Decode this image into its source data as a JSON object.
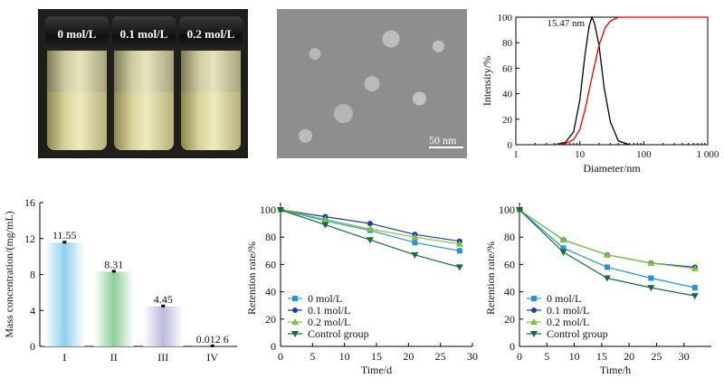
{
  "photo": {
    "vial_labels": [
      "0 mol/L",
      "0.1 mol/L",
      "0.2 mol/L"
    ]
  },
  "tem": {
    "scale_label": "50 nm"
  },
  "chart_data": [
    {
      "type": "line",
      "panel": "dls",
      "xlabel": "Diameter/nm",
      "ylabel": "Intensity/%",
      "xscale": "log",
      "xlim": [
        1,
        1000
      ],
      "ylim": [
        0,
        100
      ],
      "xticks": [
        "1",
        "10",
        "100",
        "1 000"
      ],
      "yticks": [
        0,
        20,
        40,
        60,
        80,
        100
      ],
      "annotation": "15.47 nm",
      "series": [
        {
          "color": "#000000",
          "x": [
            4,
            6,
            8,
            10,
            12,
            14,
            15.47,
            17,
            20,
            24,
            30,
            40,
            60
          ],
          "y": [
            0,
            2,
            10,
            35,
            70,
            93,
            100,
            95,
            78,
            45,
            18,
            3,
            0
          ]
        },
        {
          "color": "#e00000",
          "x": [
            4,
            6,
            8,
            10,
            12,
            15.47,
            20,
            25,
            30,
            40,
            60,
            1000
          ],
          "y": [
            0,
            1,
            4,
            12,
            27,
            53,
            78,
            92,
            97,
            100,
            100,
            100
          ]
        }
      ]
    },
    {
      "type": "bar",
      "panel": "concentration",
      "ylabel": "Mass concentration/(mg/mL)",
      "ylim": [
        0,
        16
      ],
      "yticks": [
        0,
        4,
        8,
        12,
        16
      ],
      "categories": [
        "I",
        "II",
        "III",
        "IV"
      ],
      "values": [
        11.55,
        8.31,
        4.45,
        0.0126
      ],
      "value_labels": [
        "11.55",
        "8.31",
        "4.45",
        "0.012 6"
      ],
      "colors": [
        "#8fd0ee",
        "#8ecf9a",
        "#b9b9dc",
        "#d0d0d0"
      ]
    },
    {
      "type": "line",
      "panel": "retention-days",
      "xlabel": "Time/d",
      "ylabel": "Retention rate/%",
      "xlim": [
        0,
        30
      ],
      "ylim": [
        0,
        100
      ],
      "xticks": [
        0,
        5,
        10,
        15,
        20,
        25,
        30
      ],
      "yticks": [
        0,
        20,
        40,
        60,
        80,
        100
      ],
      "x": [
        0,
        7,
        14,
        21,
        28
      ],
      "legend_placement": "bottom-left",
      "series": [
        {
          "name": "0 mol/L",
          "color": "#2a8fd6",
          "marker": "square",
          "values": [
            100,
            92,
            85,
            76,
            70
          ]
        },
        {
          "name": "0.1 mol/L",
          "color": "#1f3f9a",
          "marker": "circle",
          "values": [
            100,
            95,
            90,
            82,
            77
          ]
        },
        {
          "name": "0.2 mol/L",
          "color": "#7cc242",
          "marker": "triangle",
          "values": [
            100,
            93,
            86,
            80,
            75
          ]
        },
        {
          "name": "Control group",
          "color": "#1a6b3c",
          "marker": "down-triangle",
          "values": [
            100,
            89,
            78,
            67,
            58
          ]
        }
      ]
    },
    {
      "type": "line",
      "panel": "retention-hours",
      "xlabel": "Time/h",
      "ylabel": "Retention rate/%",
      "xlim": [
        0,
        35
      ],
      "ylim": [
        0,
        100
      ],
      "xticks": [
        0,
        5,
        10,
        15,
        20,
        25,
        30
      ],
      "yticks": [
        0,
        20,
        40,
        60,
        80,
        100
      ],
      "x": [
        0,
        8,
        16,
        24,
        32
      ],
      "legend_placement": "bottom-left",
      "series": [
        {
          "name": "0 mol/L",
          "color": "#2a8fd6",
          "marker": "square",
          "values": [
            100,
            72,
            58,
            50,
            43
          ]
        },
        {
          "name": "0.1 mol/L",
          "color": "#1f3f9a",
          "marker": "circle",
          "values": [
            100,
            78,
            67,
            61,
            58
          ]
        },
        {
          "name": "0.2 mol/L",
          "color": "#7cc242",
          "marker": "triangle",
          "values": [
            100,
            78,
            67,
            61,
            57
          ]
        },
        {
          "name": "Control group",
          "color": "#1a6b3c",
          "marker": "down-triangle",
          "values": [
            100,
            69,
            50,
            43,
            37
          ]
        }
      ]
    }
  ]
}
